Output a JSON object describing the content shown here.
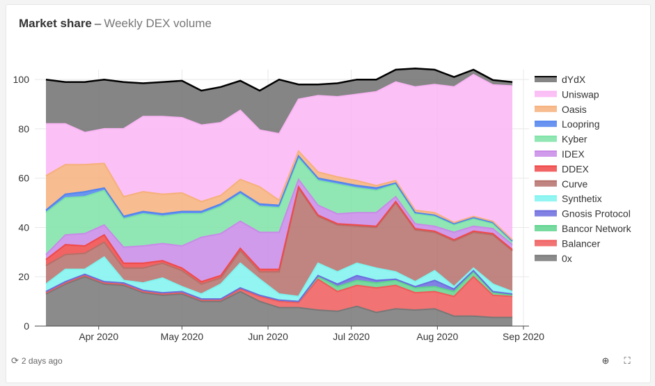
{
  "header": {
    "title": "Market share",
    "separator": "–",
    "subtitle": "Weekly DEX volume"
  },
  "footer": {
    "updated": "2 days ago"
  },
  "icons": {
    "refresh": "refresh-icon",
    "zoom": "zoom-in-icon",
    "expand": "expand-icon"
  },
  "chart_data": {
    "type": "area",
    "stacked": true,
    "x": [
      "2020-03-13",
      "2020-03-20",
      "2020-03-27",
      "2020-04-03",
      "2020-04-10",
      "2020-04-17",
      "2020-04-24",
      "2020-05-01",
      "2020-05-08",
      "2020-05-15",
      "2020-05-22",
      "2020-05-29",
      "2020-06-05",
      "2020-06-12",
      "2020-06-19",
      "2020-06-26",
      "2020-07-03",
      "2020-07-10",
      "2020-07-17",
      "2020-07-24",
      "2020-07-31",
      "2020-08-07",
      "2020-08-14",
      "2020-08-21",
      "2020-08-28"
    ],
    "x_ticks": [
      "Apr 2020",
      "May 2020",
      "Jun 2020",
      "Jul 2020",
      "Aug 2020",
      "Sep 2020"
    ],
    "x_tick_dates": [
      "2020-04-01",
      "2020-05-01",
      "2020-06-01",
      "2020-07-01",
      "2020-08-01",
      "2020-09-01"
    ],
    "x_range": [
      "2020-03-09",
      "2020-09-03"
    ],
    "ylim": [
      0,
      104
    ],
    "y_ticks": [
      0,
      20,
      40,
      60,
      80,
      100
    ],
    "grid": true,
    "legend_position": "right",
    "series": [
      {
        "name": "0x",
        "color": "#777777",
        "values": [
          13,
          17,
          20,
          17,
          16.5,
          13.5,
          12.5,
          13,
          10,
          10,
          14,
          10,
          7.5,
          7.5,
          6.5,
          6,
          8,
          5.5,
          7,
          6.5,
          7,
          4,
          4,
          3.5,
          3.5
        ]
      },
      {
        "name": "Balancer",
        "color": "#f05a5a",
        "values": [
          0.5,
          0.5,
          0.5,
          0.5,
          0.5,
          0.5,
          0.5,
          0.5,
          0.5,
          0.5,
          1,
          2,
          2.5,
          2,
          12.5,
          8,
          8.5,
          10,
          9.5,
          7,
          7,
          8,
          16,
          9,
          8.5
        ]
      },
      {
        "name": "Bancor Network",
        "color": "#5fd38d",
        "values": [
          0.5,
          0.5,
          0.5,
          0.5,
          0.5,
          0.5,
          0.5,
          0.5,
          0.5,
          0.5,
          0.5,
          0.5,
          0.5,
          0.5,
          1,
          2,
          2,
          2,
          2,
          2,
          2,
          2,
          2,
          1,
          0.5
        ]
      },
      {
        "name": "Gnosis Protocol",
        "color": "#6b6bde",
        "values": [
          0,
          0,
          0,
          0,
          0,
          0,
          0,
          0,
          0,
          0,
          0,
          0,
          0,
          0,
          0.5,
          1,
          2,
          1,
          0.5,
          0.5,
          2.5,
          1,
          0.5,
          0.5,
          0.5
        ]
      },
      {
        "name": "Synthetix",
        "color": "#7ff3ef",
        "values": [
          3,
          5,
          2,
          10,
          1,
          3,
          6,
          2,
          2,
          6,
          10,
          6.5,
          2.5,
          2,
          5,
          5,
          5,
          5,
          3,
          2,
          4,
          1,
          1,
          3,
          1
        ]
      },
      {
        "name": "Curve",
        "color": "#b5706a",
        "values": [
          7.5,
          6,
          6.5,
          6,
          5,
          6,
          6,
          6.5,
          4,
          2.5,
          5,
          3,
          9,
          44,
          19,
          19,
          15,
          16.5,
          28,
          21,
          15.5,
          18.5,
          14.5,
          20,
          16.5
        ]
      },
      {
        "name": "DDEX",
        "color": "#f04848",
        "values": [
          2.5,
          4,
          3,
          3,
          2,
          2,
          1,
          1,
          1,
          1,
          1,
          1,
          1,
          0.5,
          0.5,
          0.5,
          0.5,
          0.5,
          0.5,
          0.5,
          0.5,
          0.5,
          0.5,
          0.5,
          0.5
        ]
      },
      {
        "name": "IDEX",
        "color": "#c88ae8",
        "values": [
          2,
          4,
          5,
          4,
          6.5,
          7,
          7,
          9,
          18,
          17,
          11,
          15,
          15,
          3,
          4,
          4,
          5,
          5.5,
          2,
          2,
          2,
          3,
          2,
          2,
          2
        ]
      },
      {
        "name": "Kyber",
        "color": "#7ee3a6",
        "values": [
          17,
          15,
          15,
          14,
          11.5,
          13,
          11,
          13,
          9.5,
          11,
          11,
          10.5,
          10,
          8.5,
          10,
          12,
          10,
          9,
          5,
          4,
          4,
          3,
          3,
          2,
          1
        ]
      },
      {
        "name": "Loopring",
        "color": "#4f83ef",
        "values": [
          1,
          1.5,
          2,
          1,
          1,
          1,
          1,
          1,
          1,
          1,
          1,
          1,
          1,
          1,
          1,
          1,
          1,
          1,
          0.5,
          0.5,
          0.5,
          0.5,
          0.5,
          0.5,
          0.5
        ]
      },
      {
        "name": "Oasis",
        "color": "#f6b07b",
        "values": [
          14,
          12,
          11,
          10,
          8,
          8,
          8,
          7.5,
          4,
          3.5,
          5,
          7,
          2,
          2,
          2.5,
          2,
          2,
          1,
          1,
          1,
          1,
          0.5,
          0.5,
          0.5,
          0.5
        ]
      },
      {
        "name": "Uniswap",
        "color": "#fab6f5",
        "values": [
          21,
          16.5,
          13,
          14,
          27.5,
          30.5,
          31.5,
          30.5,
          31,
          29.5,
          28,
          23,
          27,
          21,
          31,
          32.5,
          35,
          38,
          40,
          50,
          52,
          55,
          57.5,
          55.3,
          62.4
        ]
      },
      {
        "name": "dYdX",
        "color": "#707070",
        "values": [
          18,
          17,
          20.5,
          20,
          19,
          13.5,
          14,
          15,
          14,
          14.5,
          12,
          16,
          22,
          6,
          4.5,
          5.5,
          6,
          5,
          5,
          7.5,
          6,
          4,
          2,
          2,
          1.6
        ]
      }
    ],
    "legend_order": [
      "dYdX",
      "Uniswap",
      "Oasis",
      "Loopring",
      "Kyber",
      "IDEX",
      "DDEX",
      "Curve",
      "Synthetix",
      "Gnosis Protocol",
      "Bancor Network",
      "Balancer",
      "0x"
    ]
  }
}
